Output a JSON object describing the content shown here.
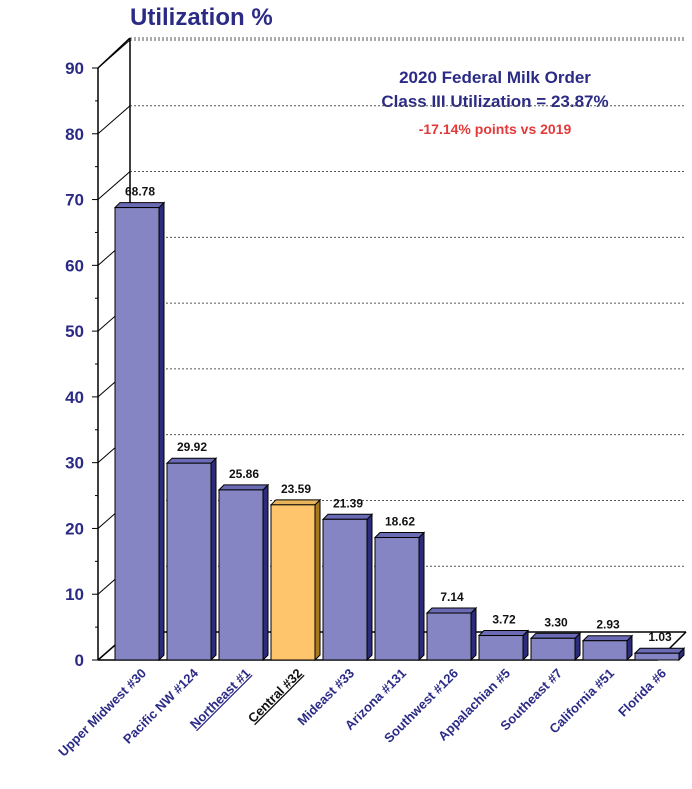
{
  "chart_data": {
    "type": "bar",
    "title": "",
    "ylabel": "Utilization %",
    "xlabel": "",
    "ylim": [
      0,
      90
    ],
    "yticks": [
      0,
      10,
      20,
      30,
      40,
      50,
      60,
      70,
      80,
      90
    ],
    "grid": true,
    "categories": [
      "Upper Midwest #30",
      "Pacific NW #124",
      "Northeast #1",
      "Central #32",
      "Mideast #33",
      "Arizona #131",
      "Southwest #126",
      "Appalachian #5",
      "Southeast #7",
      "California #51",
      "Florida #6"
    ],
    "values": [
      68.78,
      29.92,
      25.86,
      23.59,
      21.39,
      18.62,
      7.14,
      3.72,
      3.3,
      2.93,
      1.03
    ],
    "data_labels": [
      "68.78",
      "29.92",
      "25.86",
      "23.59",
      "21.39",
      "18.62",
      "7.14",
      "3.72",
      "3.30",
      "2.93",
      "1.03"
    ],
    "highlight_index": 3,
    "underlined_categories": [
      "Northeast #1",
      "Central #32"
    ],
    "annotations": {
      "line1": "2020 Federal Milk Order",
      "line2": "Class III Utilization = 23.87%",
      "line3": "-17.14% points vs 2019"
    },
    "colors": {
      "bar": "#8585c4",
      "bar_side": "#2c2c7a",
      "bar_top": "#6a6ab5",
      "highlight": "#fec56d",
      "highlight_side": "#a87a20",
      "axis_text": "#2b2b86",
      "annotation_red": "#e23a3a"
    }
  }
}
